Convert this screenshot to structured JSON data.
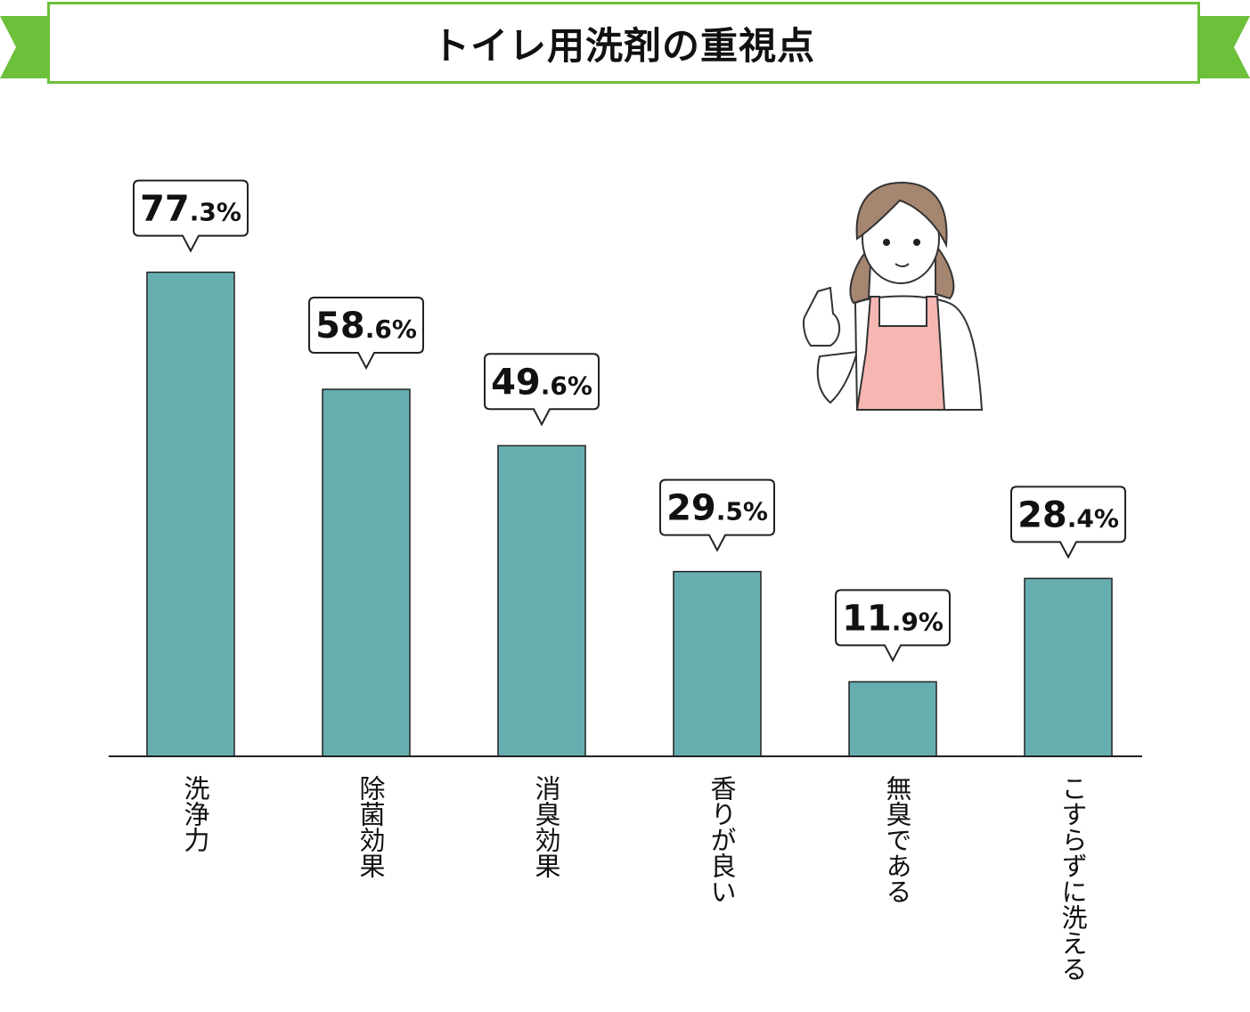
{
  "chart_data": {
    "type": "bar",
    "title": "トイレ用洗剤の重視点",
    "categories": [
      "洗浄力",
      "除菌効果",
      "消臭効果",
      "香りが良い",
      "無臭である",
      "こすらずに洗える"
    ],
    "values": [
      77.3,
      58.6,
      49.6,
      29.5,
      11.9,
      28.4
    ],
    "value_labels": [
      {
        "int": "77",
        "frac": ".3%"
      },
      {
        "int": "58",
        "frac": ".6%"
      },
      {
        "int": "49",
        "frac": ".6%"
      },
      {
        "int": "29",
        "frac": ".5%"
      },
      {
        "int": "11",
        "frac": ".9%"
      },
      {
        "int": "28",
        "frac": ".4%"
      }
    ],
    "unit": "%",
    "xlabel": "",
    "ylabel": "",
    "ylim": [
      0,
      100
    ],
    "grid": false,
    "colors": {
      "bar": "#67aeb1",
      "banner": "#6cc03a",
      "apron": "#f6b7b2",
      "hair": "#a58670"
    }
  }
}
